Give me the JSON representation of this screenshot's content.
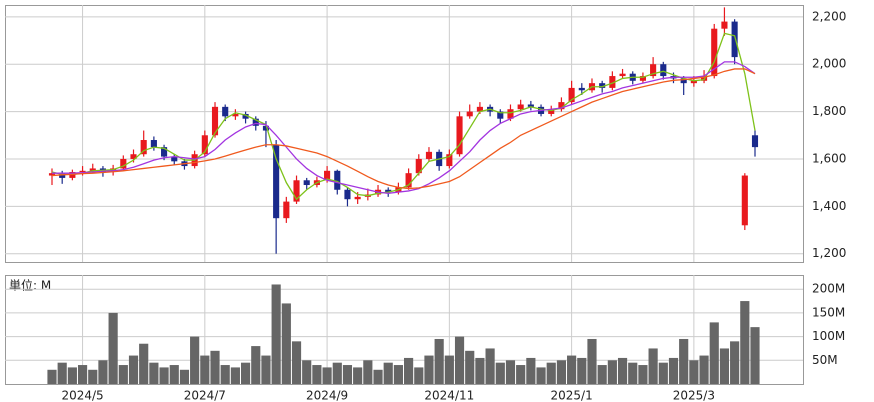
{
  "chart_data": {
    "type": "candlestick",
    "up_color": "#e8191e",
    "down_color": "#1a2a8c",
    "ylim": [
      1165,
      2250
    ],
    "yticks": [
      {
        "value": 1200,
        "label": "1,200"
      },
      {
        "value": 1400,
        "label": "1,400"
      },
      {
        "value": 1600,
        "label": "1,600"
      },
      {
        "value": 1800,
        "label": "1,800"
      },
      {
        "value": 2000,
        "label": "2,000"
      },
      {
        "value": 2200,
        "label": "2,200"
      }
    ],
    "grid": true,
    "categories": [
      null,
      null,
      null,
      "2024/5",
      null,
      null,
      null,
      null,
      null,
      null,
      null,
      null,
      null,
      null,
      null,
      "2024/7",
      null,
      null,
      null,
      null,
      null,
      null,
      null,
      null,
      null,
      null,
      null,
      "2024/9",
      null,
      null,
      null,
      null,
      null,
      null,
      null,
      null,
      null,
      null,
      null,
      "2024/11",
      null,
      null,
      null,
      null,
      null,
      null,
      null,
      null,
      null,
      null,
      null,
      "2025/1",
      null,
      null,
      null,
      null,
      null,
      null,
      null,
      null,
      null,
      null,
      null,
      "2025/3",
      null,
      null,
      null,
      null,
      null,
      null
    ],
    "ohlc": [
      [
        1530,
        1560,
        1490,
        1540
      ],
      [
        1540,
        1550,
        1495,
        1520
      ],
      [
        1520,
        1555,
        1510,
        1545
      ],
      [
        1545,
        1570,
        1530,
        1550
      ],
      [
        1550,
        1580,
        1540,
        1560
      ],
      [
        1560,
        1570,
        1525,
        1545
      ],
      [
        1545,
        1575,
        1530,
        1560
      ],
      [
        1560,
        1615,
        1550,
        1600
      ],
      [
        1600,
        1640,
        1585,
        1620
      ],
      [
        1620,
        1720,
        1610,
        1680
      ],
      [
        1680,
        1695,
        1635,
        1650
      ],
      [
        1650,
        1660,
        1595,
        1610
      ],
      [
        1610,
        1620,
        1575,
        1590
      ],
      [
        1590,
        1600,
        1555,
        1570
      ],
      [
        1570,
        1635,
        1560,
        1620
      ],
      [
        1620,
        1720,
        1610,
        1700
      ],
      [
        1700,
        1840,
        1690,
        1820
      ],
      [
        1820,
        1830,
        1760,
        1780
      ],
      [
        1780,
        1810,
        1765,
        1790
      ],
      [
        1790,
        1800,
        1750,
        1770
      ],
      [
        1770,
        1780,
        1720,
        1740
      ],
      [
        1740,
        1760,
        1650,
        1720
      ],
      [
        1660,
        1680,
        1200,
        1350
      ],
      [
        1350,
        1440,
        1330,
        1420
      ],
      [
        1420,
        1530,
        1410,
        1510
      ],
      [
        1510,
        1520,
        1470,
        1490
      ],
      [
        1490,
        1525,
        1480,
        1510
      ],
      [
        1510,
        1570,
        1500,
        1550
      ],
      [
        1550,
        1555,
        1450,
        1470
      ],
      [
        1470,
        1480,
        1400,
        1430
      ],
      [
        1430,
        1460,
        1410,
        1440
      ],
      [
        1440,
        1475,
        1425,
        1450
      ],
      [
        1450,
        1490,
        1440,
        1470
      ],
      [
        1470,
        1480,
        1440,
        1460
      ],
      [
        1460,
        1500,
        1450,
        1480
      ],
      [
        1480,
        1560,
        1470,
        1540
      ],
      [
        1540,
        1620,
        1530,
        1600
      ],
      [
        1600,
        1650,
        1590,
        1630
      ],
      [
        1630,
        1640,
        1550,
        1570
      ],
      [
        1570,
        1640,
        1560,
        1620
      ],
      [
        1620,
        1800,
        1610,
        1780
      ],
      [
        1780,
        1830,
        1770,
        1800
      ],
      [
        1800,
        1840,
        1790,
        1820
      ],
      [
        1820,
        1830,
        1780,
        1800
      ],
      [
        1800,
        1810,
        1750,
        1770
      ],
      [
        1770,
        1830,
        1760,
        1810
      ],
      [
        1810,
        1850,
        1800,
        1830
      ],
      [
        1830,
        1845,
        1805,
        1820
      ],
      [
        1820,
        1830,
        1780,
        1790
      ],
      [
        1790,
        1825,
        1780,
        1810
      ],
      [
        1810,
        1860,
        1800,
        1840
      ],
      [
        1840,
        1930,
        1830,
        1900
      ],
      [
        1900,
        1920,
        1870,
        1890
      ],
      [
        1890,
        1940,
        1880,
        1920
      ],
      [
        1920,
        1930,
        1880,
        1900
      ],
      [
        1900,
        1970,
        1890,
        1950
      ],
      [
        1950,
        1980,
        1940,
        1960
      ],
      [
        1960,
        1970,
        1915,
        1930
      ],
      [
        1930,
        1965,
        1920,
        1950
      ],
      [
        1950,
        2030,
        1940,
        2000
      ],
      [
        2000,
        2010,
        1935,
        1950
      ],
      [
        1950,
        1965,
        1920,
        1940
      ],
      [
        1940,
        1950,
        1870,
        1920
      ],
      [
        1920,
        1950,
        1905,
        1930
      ],
      [
        1930,
        1975,
        1920,
        1950
      ],
      [
        1950,
        2170,
        1940,
        2150
      ],
      [
        2150,
        2240,
        2120,
        2180
      ],
      [
        2180,
        2190,
        2000,
        2030
      ],
      [
        1320,
        1540,
        1300,
        1530
      ],
      [
        1700,
        1720,
        1610,
        1650
      ]
    ],
    "ma_lines": [
      {
        "color": "#7ec21a",
        "values": [
          1545,
          1535,
          1535,
          1540,
          1550,
          1552,
          1555,
          1570,
          1595,
          1635,
          1650,
          1645,
          1620,
          1595,
          1595,
          1630,
          1710,
          1770,
          1795,
          1785,
          1765,
          1745,
          1600,
          1500,
          1430,
          1470,
          1500,
          1515,
          1505,
          1480,
          1450,
          1445,
          1455,
          1460,
          1470,
          1490,
          1540,
          1590,
          1600,
          1610,
          1660,
          1730,
          1800,
          1810,
          1795,
          1795,
          1805,
          1820,
          1810,
          1805,
          1815,
          1850,
          1875,
          1905,
          1905,
          1920,
          1940,
          1945,
          1945,
          1960,
          1970,
          1955,
          1940,
          1930,
          1935,
          2010,
          2130,
          2120,
          1960,
          1720
        ]
      },
      {
        "color": "#a335e0",
        "values": [
          1540,
          1540,
          1540,
          1542,
          1545,
          1548,
          1550,
          1555,
          1565,
          1580,
          1595,
          1605,
          1610,
          1605,
          1600,
          1610,
          1640,
          1680,
          1710,
          1735,
          1750,
          1745,
          1700,
          1650,
          1600,
          1560,
          1530,
          1510,
          1500,
          1490,
          1480,
          1470,
          1460,
          1455,
          1460,
          1465,
          1475,
          1495,
          1520,
          1550,
          1590,
          1630,
          1680,
          1720,
          1750,
          1770,
          1790,
          1800,
          1805,
          1810,
          1815,
          1830,
          1845,
          1860,
          1875,
          1885,
          1900,
          1910,
          1920,
          1930,
          1940,
          1945,
          1945,
          1945,
          1950,
          1980,
          2010,
          2010,
          1990,
          1960
        ]
      },
      {
        "color": "#f05a1e",
        "values": [
          1530,
          1533,
          1535,
          1538,
          1540,
          1543,
          1546,
          1550,
          1555,
          1560,
          1565,
          1570,
          1575,
          1580,
          1585,
          1592,
          1600,
          1612,
          1625,
          1638,
          1650,
          1660,
          1660,
          1655,
          1645,
          1635,
          1625,
          1610,
          1590,
          1570,
          1548,
          1525,
          1505,
          1490,
          1480,
          1475,
          1478,
          1485,
          1495,
          1505,
          1525,
          1555,
          1585,
          1615,
          1645,
          1670,
          1700,
          1720,
          1740,
          1760,
          1780,
          1800,
          1820,
          1840,
          1855,
          1870,
          1885,
          1895,
          1905,
          1915,
          1925,
          1932,
          1935,
          1940,
          1945,
          1955,
          1970,
          1980,
          1980,
          1960
        ]
      }
    ],
    "volume": {
      "unit_label": "単位: M",
      "color": "#666666",
      "ylim": [
        0,
        230
      ],
      "yticks": [
        {
          "value": 50,
          "label": "50M"
        },
        {
          "value": 100,
          "label": "100M"
        },
        {
          "value": 150,
          "label": "150M"
        },
        {
          "value": 200,
          "label": "200M"
        }
      ],
      "values": [
        30,
        45,
        35,
        40,
        30,
        50,
        150,
        40,
        60,
        85,
        45,
        35,
        40,
        30,
        100,
        60,
        70,
        40,
        35,
        45,
        80,
        60,
        210,
        170,
        90,
        50,
        40,
        35,
        45,
        40,
        35,
        50,
        30,
        45,
        40,
        55,
        35,
        60,
        95,
        60,
        100,
        70,
        55,
        75,
        45,
        50,
        40,
        55,
        35,
        45,
        50,
        60,
        55,
        95,
        40,
        50,
        55,
        45,
        40,
        75,
        45,
        55,
        95,
        50,
        60,
        130,
        75,
        90,
        175,
        120
      ]
    }
  }
}
